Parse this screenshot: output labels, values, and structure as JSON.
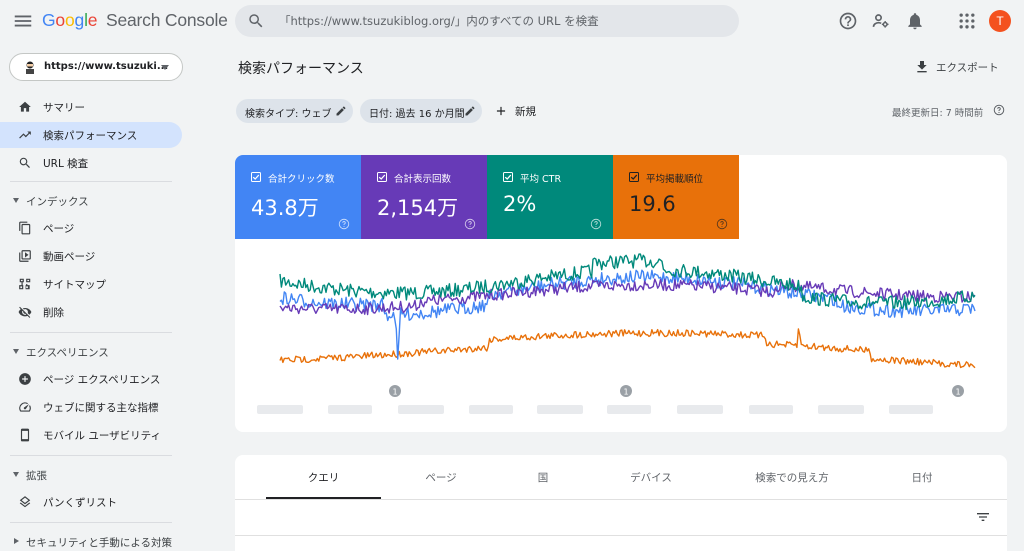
{
  "app": {
    "logo_google": "Google",
    "logo_product": "Search Console"
  },
  "search": {
    "placeholder": "「https://www.tsuzukiblog.org/」内のすべての URL を検査"
  },
  "user": {
    "avatar_letter": "T"
  },
  "property": {
    "label": "https://www.tsuzuki..."
  },
  "sidebar": {
    "top_items": [
      {
        "label": "サマリー",
        "icon": "home-icon"
      },
      {
        "label": "検索パフォーマンス",
        "icon": "trending-icon",
        "active": true
      },
      {
        "label": "URL 検査",
        "icon": "search-icon"
      }
    ],
    "sections": [
      {
        "label": "インデックス",
        "items": [
          {
            "label": "ページ",
            "icon": "pages-icon"
          },
          {
            "label": "動画ページ",
            "icon": "video-pages-icon"
          },
          {
            "label": "サイトマップ",
            "icon": "sitemap-icon"
          },
          {
            "label": "削除",
            "icon": "visibility-off-icon"
          }
        ]
      },
      {
        "label": "エクスペリエンス",
        "items": [
          {
            "label": "ページ エクスペリエンス",
            "icon": "add-circle-icon"
          },
          {
            "label": "ウェブに関する主な指標",
            "icon": "speed-icon"
          },
          {
            "label": "モバイル ユーザビリティ",
            "icon": "smartphone-icon"
          }
        ]
      },
      {
        "label": "拡張",
        "items": [
          {
            "label": "パンくずリスト",
            "icon": "layers-icon"
          }
        ]
      },
      {
        "label": "セキュリティと手動による対策",
        "collapsed": true,
        "items": []
      }
    ]
  },
  "main": {
    "title": "検索パフォーマンス",
    "export_label": "エクスポート",
    "filters": [
      {
        "label": "検索タイプ: ウェブ"
      },
      {
        "label": "日付: 過去 16 か月間"
      }
    ],
    "new_label": "新規",
    "last_updated": "最終更新日: 7 時間前"
  },
  "metrics": [
    {
      "label": "合計クリック数",
      "value": "43.8万",
      "bg": "#4285f4",
      "fg": "#ffffff"
    },
    {
      "label": "合計表示回数",
      "value": "2,154万",
      "bg": "#673ab7",
      "fg": "#ffffff"
    },
    {
      "label": "平均 CTR",
      "value": "2%",
      "bg": "#00897b",
      "fg": "#ffffff"
    },
    {
      "label": "平均掲載順位",
      "value": "19.6",
      "bg": "#e8710a",
      "fg": "#202124"
    }
  ],
  "chart_data": {
    "type": "line",
    "series": [
      {
        "name": "合計クリック数",
        "color": "#4285f4",
        "points": 485
      },
      {
        "name": "合計表示回数",
        "color": "#673ab7",
        "points": 485
      },
      {
        "name": "平均 CTR",
        "color": "#00897b",
        "points": 485
      },
      {
        "name": "平均掲載順位",
        "color": "#e8710a",
        "points": 485
      }
    ],
    "annotation_marker": "1",
    "annotation_count": 3
  },
  "tabs": [
    {
      "label": "クエリ",
      "active": true
    },
    {
      "label": "ページ"
    },
    {
      "label": "国"
    },
    {
      "label": "デバイス"
    },
    {
      "label": "検索での見え方"
    },
    {
      "label": "日付"
    }
  ]
}
